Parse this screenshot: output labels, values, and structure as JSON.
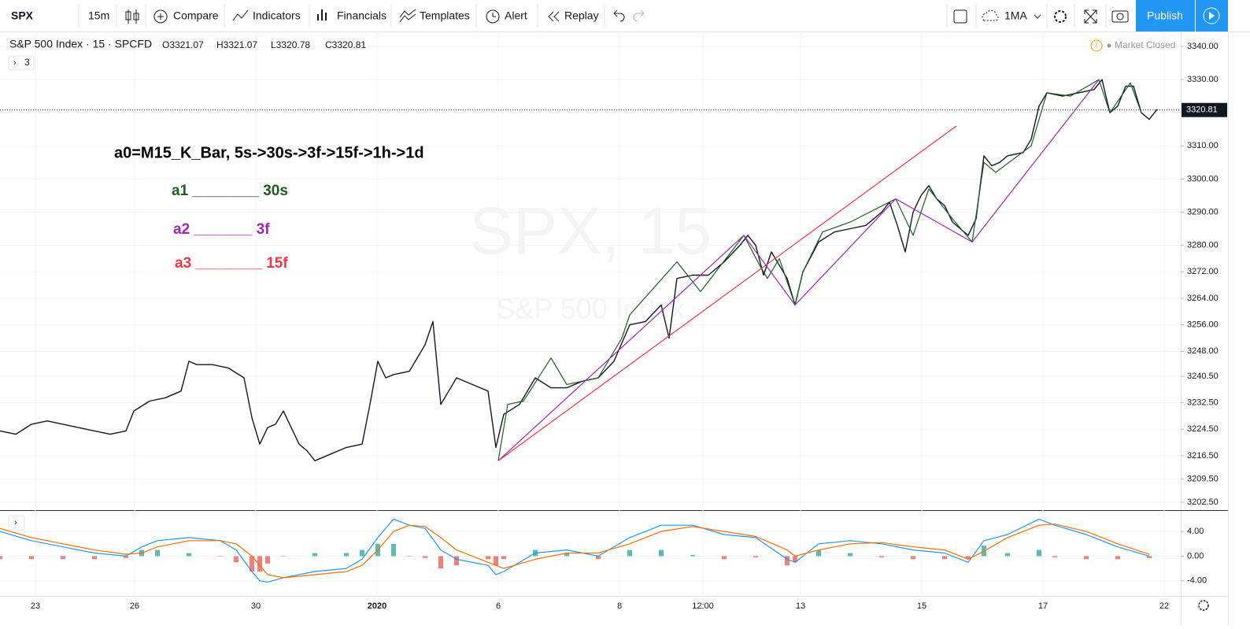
{
  "toolbar": {
    "symbol": "SPX",
    "interval": "15m",
    "compare": "Compare",
    "indicators": "Indicators",
    "financials": "Financials",
    "templates": "Templates",
    "alert": "Alert",
    "replay": "Replay",
    "ma": "1MA",
    "publish": "Publish"
  },
  "legend": {
    "title": "S&P 500 Index · 15 · SPCFD",
    "ohlc": [
      "O3321.07",
      "H3321.07",
      "L3320.78",
      "C3320.81"
    ],
    "collapsed": "3",
    "status": "Market Closed"
  },
  "watermark": {
    "symbol": "SPX, 15",
    "name": "S&P 500 Index"
  },
  "chart": {
    "type": "line",
    "xlim": [
      0,
      150
    ],
    "ylim": [
      3200.1,
      3344.5
    ],
    "xticks": [
      {
        "value": 4.5,
        "label": "23"
      },
      {
        "value": 17.1,
        "label": "26"
      },
      {
        "value": 32.5,
        "label": "30"
      },
      {
        "value": 47.9,
        "label": "2020"
      },
      {
        "value": 63.3,
        "label": "6"
      },
      {
        "value": 78.7,
        "label": "8"
      },
      {
        "value": 89.3,
        "label": "12:00"
      },
      {
        "value": 101.7,
        "label": "13"
      },
      {
        "value": 117.1,
        "label": "15"
      },
      {
        "value": 132.5,
        "label": "17"
      },
      {
        "value": 147.9,
        "label": "22"
      }
    ],
    "yticks": [
      {
        "value": 3340,
        "label": "3340.00"
      },
      {
        "value": 3330,
        "label": "3330.00"
      },
      {
        "value": 3310,
        "label": "3310.00"
      },
      {
        "value": 3300,
        "label": "3300.00"
      },
      {
        "value": 3290,
        "label": "3290.00"
      },
      {
        "value": 3280,
        "label": "3280.00"
      },
      {
        "value": 3272,
        "label": "3272.00"
      },
      {
        "value": 3264,
        "label": "3264.00"
      },
      {
        "value": 3256,
        "label": "3256.00"
      },
      {
        "value": 3248,
        "label": "3248.00"
      },
      {
        "value": 3240.5,
        "label": "3240.50"
      },
      {
        "value": 3232.5,
        "label": "3232.50"
      },
      {
        "value": 3224.5,
        "label": "3224.50"
      },
      {
        "value": 3216.5,
        "label": "3216.50"
      },
      {
        "value": 3209.5,
        "label": "3209.50"
      },
      {
        "value": 3202.5,
        "label": "3202.50"
      }
    ],
    "last": 3320.81,
    "grid": true,
    "series": [
      {
        "name": "price",
        "color": "#131722",
        "x": [
          0,
          2,
          4,
          6,
          8,
          10,
          12,
          14,
          16,
          17,
          19,
          21,
          23,
          24,
          25,
          27,
          29,
          31,
          32,
          33,
          34,
          35,
          36,
          37,
          38,
          39,
          40,
          42,
          44,
          46,
          47,
          48,
          49,
          50,
          52,
          54,
          55,
          56,
          57,
          58,
          60,
          62,
          63,
          64,
          66,
          68,
          70,
          72,
          74,
          76,
          78,
          80,
          82,
          84,
          85,
          86,
          88,
          90,
          92,
          94,
          95,
          96,
          97,
          98,
          100,
          101,
          102,
          104,
          106,
          108,
          110,
          112,
          113,
          114,
          115,
          116,
          117,
          118,
          119,
          120,
          121,
          123,
          124,
          125,
          126,
          127,
          128,
          130,
          131,
          132,
          133,
          135,
          137,
          139,
          140,
          141,
          142,
          143,
          144,
          145,
          146,
          147
        ],
        "values": [
          3224,
          3223,
          3226,
          3227,
          3226,
          3225,
          3224,
          3223,
          3224,
          3230,
          3233,
          3234,
          3236,
          3245,
          3244,
          3244,
          3243,
          3240,
          3228,
          3220,
          3225,
          3226,
          3230,
          3225,
          3220,
          3218,
          3215,
          3217,
          3219,
          3220,
          3232,
          3245,
          3240,
          3241,
          3242,
          3250,
          3257,
          3232,
          3236,
          3240,
          3238,
          3236,
          3219,
          3229,
          3232,
          3240,
          3237,
          3237,
          3239,
          3240,
          3245,
          3256,
          3257,
          3262,
          3252,
          3270,
          3271,
          3271,
          3275,
          3280,
          3283,
          3280,
          3271,
          3278,
          3270,
          3262,
          3272,
          3281,
          3284,
          3285,
          3286,
          3290,
          3293,
          3286,
          3278,
          3290,
          3295,
          3298,
          3294,
          3292,
          3287,
          3283,
          3288,
          3307,
          3304,
          3305,
          3307,
          3308,
          3312,
          3322,
          3326,
          3325,
          3326,
          3327,
          3330,
          3320,
          3322,
          3328,
          3328,
          3320,
          3318,
          3321
        ]
      },
      {
        "name": "a1",
        "color": "#1b5e20",
        "x": [
          63.3,
          64.5,
          66.5,
          70,
          72,
          76,
          79,
          80,
          86,
          89,
          94.5,
          96.5,
          97.5,
          99,
          101,
          102,
          104.5,
          108,
          113.8,
          116,
          118,
          121,
          123.5,
          125,
          126.5,
          131,
          133,
          136,
          139.6,
          141,
          143.6,
          145
        ],
        "values": [
          3215,
          3232,
          3233,
          3246,
          3238,
          3240,
          3252,
          3259,
          3275,
          3266,
          3283,
          3274,
          3270,
          3276,
          3262,
          3272,
          3284,
          3287,
          3294,
          3283,
          3297,
          3288,
          3281,
          3305,
          3302,
          3310,
          3326,
          3325,
          3330,
          3320,
          3329,
          3320
        ]
      },
      {
        "name": "a2",
        "color": "#9c27b0",
        "x": [
          63.3,
          94.5,
          101,
          113.8,
          123.5,
          139.6
        ],
        "values": [
          3215,
          3283,
          3262,
          3294,
          3281,
          3330
        ]
      },
      {
        "name": "a3",
        "color": "#f23645",
        "x": [
          63.3,
          121.5
        ],
        "values": [
          3215,
          3316
        ]
      }
    ],
    "annotations": [
      {
        "text": "a0=M15_K_Bar,  5s->30s->3f->15f->1h->1d",
        "color": "#000000"
      },
      {
        "text": "a1 ________ 30s",
        "color": "#1b5e20"
      },
      {
        "text": "a2 _______ 3f",
        "color": "#9c27b0"
      },
      {
        "text": "a3 ________ 15f",
        "color": "#f23645"
      }
    ],
    "macd": {
      "ylim": [
        -6.45,
        7.2
      ],
      "yticks": [
        {
          "value": 4,
          "label": "4.00"
        },
        {
          "value": 0,
          "label": "0.00"
        },
        {
          "value": -4,
          "label": "-4.00"
        }
      ],
      "x": [
        0,
        4,
        8,
        12,
        16,
        18,
        20,
        24,
        28,
        30,
        32,
        33,
        34,
        36,
        40,
        44,
        46,
        48,
        50,
        52,
        54,
        56,
        58,
        62,
        63,
        64,
        68,
        72,
        76,
        80,
        84,
        88,
        92,
        96,
        100,
        101,
        104,
        108,
        112,
        116,
        120,
        123,
        125,
        128,
        132,
        134,
        138,
        142,
        146
      ],
      "macd": {
        "color": "#2196f3",
        "values": [
          4.0,
          2.5,
          1.5,
          0.5,
          0.0,
          1.5,
          2.5,
          3.0,
          2.5,
          1.0,
          -2.5,
          -4.0,
          -4.2,
          -3.5,
          -2.5,
          -2.0,
          -0.5,
          3.0,
          6.0,
          5.0,
          4.5,
          1.0,
          -0.5,
          -1.5,
          -3.0,
          -2.5,
          0.5,
          1.0,
          0.0,
          3.0,
          5.0,
          5.0,
          3.5,
          3.0,
          -0.5,
          -1.0,
          2.0,
          2.5,
          2.0,
          1.0,
          0.5,
          -1.0,
          2.5,
          3.5,
          6.0,
          5.0,
          3.5,
          1.5,
          0.0
        ]
      },
      "signal": {
        "color": "#ff6d00",
        "values": [
          4.5,
          3.0,
          2.0,
          1.0,
          0.3,
          0.5,
          1.5,
          2.5,
          2.5,
          2.0,
          0.0,
          -1.5,
          -3.0,
          -3.5,
          -3.0,
          -2.5,
          -1.5,
          1.0,
          4.0,
          5.0,
          4.8,
          3.0,
          1.0,
          -1.0,
          -1.5,
          -2.0,
          -0.5,
          0.5,
          0.5,
          2.0,
          4.0,
          4.8,
          4.0,
          3.2,
          1.0,
          0.0,
          1.0,
          2.0,
          2.2,
          1.5,
          1.0,
          -0.5,
          0.8,
          3.0,
          5.0,
          5.2,
          4.0,
          2.0,
          0.3
        ]
      },
      "histogram": {
        "up_color": "#26a69a",
        "down_color": "#ef5350",
        "values": [
          -0.5,
          -0.5,
          -0.5,
          -0.5,
          -0.3,
          1.0,
          1.0,
          0.5,
          0,
          -1.0,
          -2.5,
          -2.5,
          -1.2,
          0,
          0.5,
          0.5,
          1.0,
          2.0,
          2.0,
          0,
          -0.3,
          -2.0,
          -1.5,
          -0.5,
          -1.5,
          -0.5,
          1.0,
          0.5,
          -0.5,
          1.0,
          1.0,
          0.2,
          -0.5,
          -0.2,
          -1.5,
          -1.0,
          1.0,
          0.5,
          -0.2,
          -0.5,
          -0.5,
          -0.5,
          1.7,
          0.5,
          1.0,
          -0.2,
          -0.5,
          -0.5,
          -0.3
        ]
      }
    }
  }
}
